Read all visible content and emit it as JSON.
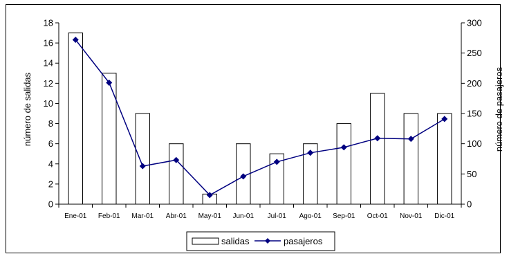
{
  "chart_data": {
    "type": "bar+line",
    "categories": [
      "Ene-01",
      "Feb-01",
      "Mar-01",
      "Abr-01",
      "May-01",
      "Jun-01",
      "Jul-01",
      "Ago-01",
      "Sep-01",
      "Oct-01",
      "Nov-01",
      "Dic-01"
    ],
    "series": [
      {
        "name": "salidas",
        "type": "bar",
        "axis": "left",
        "values": [
          17,
          13,
          9,
          6,
          1,
          6,
          5,
          6,
          8,
          11,
          9,
          9
        ]
      },
      {
        "name": "pasajeros",
        "type": "line",
        "axis": "right",
        "marker": "diamond",
        "values": [
          272,
          201,
          63,
          73,
          15,
          46,
          70,
          85,
          94,
          109,
          108,
          141
        ]
      }
    ],
    "ylabel": "número de salidas",
    "ylabel_right": "número de pasajeros",
    "ylim": [
      0,
      18
    ],
    "ylim_right": [
      0,
      300
    ],
    "yticks": [
      0,
      2,
      4,
      6,
      8,
      10,
      12,
      14,
      16,
      18
    ],
    "yticks_right": [
      0,
      50,
      100,
      150,
      200,
      250,
      300
    ],
    "grid": false,
    "legend": "bottom",
    "colors": {
      "bar_fill": "#ffffff",
      "bar_stroke": "#000000",
      "line": "#000080",
      "marker": "#000080"
    }
  }
}
